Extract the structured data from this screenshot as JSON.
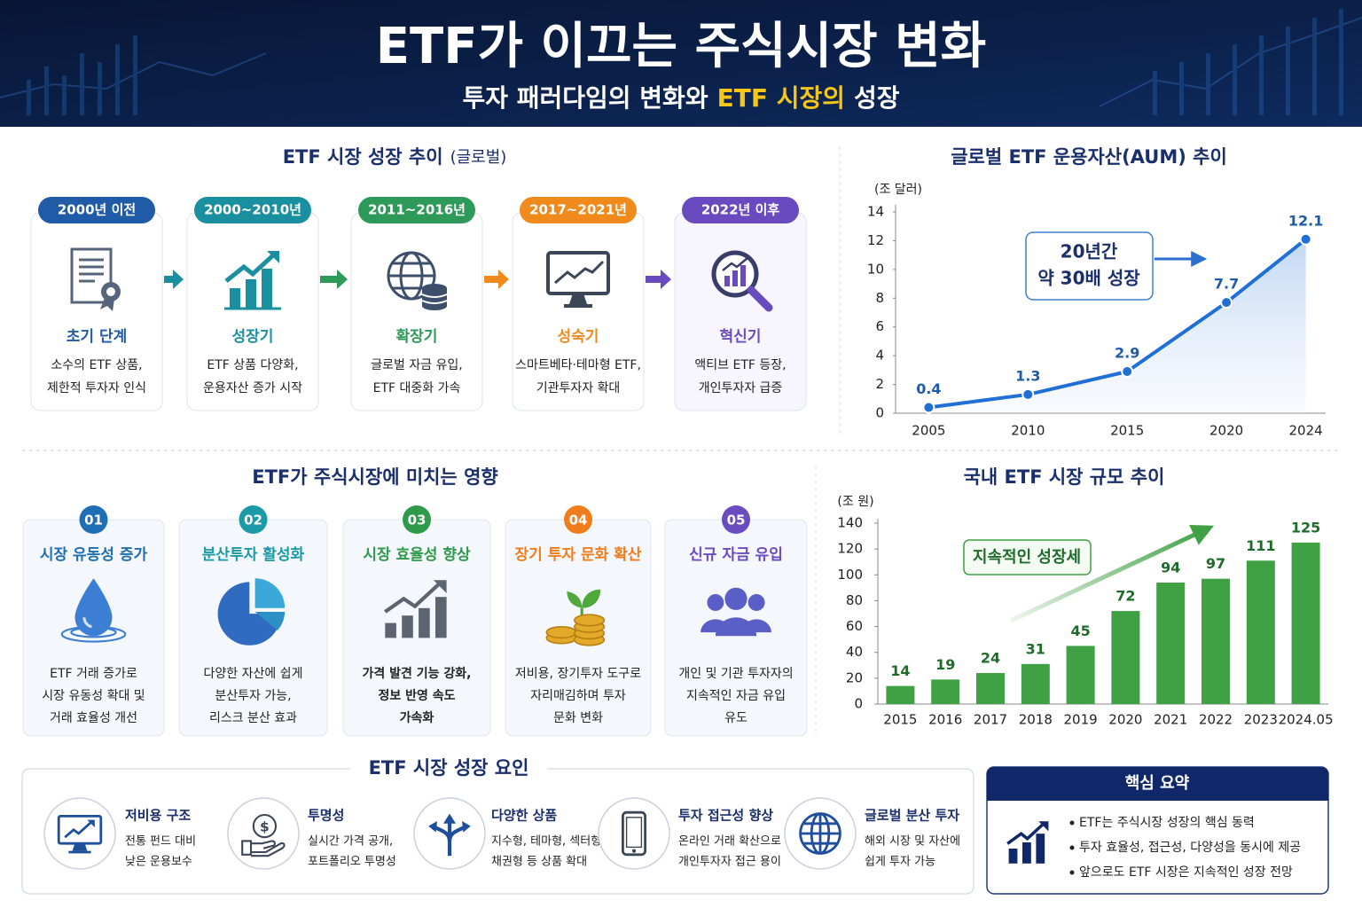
{
  "header": {
    "title": "ETF가 이끄는 주식시장 변화",
    "subtitle": [
      "투자 패러다임의 변화와",
      "ETF 시장의",
      "성장"
    ]
  },
  "timeline": {
    "title": "ETF 시장 성장 추이",
    "title_note": "(글로벌)",
    "stages": [
      {
        "period": "2000년 이전",
        "phase": "초기 단계",
        "description": [
          "소수의 ETF 상품,",
          "제한적 투자자 인식"
        ],
        "color": "#1f5ba6"
      },
      {
        "period": "2000~2010년",
        "phase": "성장기",
        "description": [
          "ETF 상품 다양화,",
          "운용자산 증가 시작"
        ],
        "color": "#1a8fa0"
      },
      {
        "period": "2011~2016년",
        "phase": "확장기",
        "description": [
          "글로벌 자금 유입,",
          "ETF 대중화 가속"
        ],
        "color": "#2e9a5a"
      },
      {
        "period": "2017~2021년",
        "phase": "성숙기",
        "description": [
          "스마트베타·테마형 ETF,",
          "기관투자자 확대"
        ],
        "color": "#f08a1c"
      },
      {
        "period": "2022년 이후",
        "phase": "혁신기",
        "description": [
          "액티브 ETF 등장,",
          "개인투자자 급증"
        ],
        "color": "#6a4bbf"
      }
    ]
  },
  "chart_data": [
    {
      "type": "line",
      "title": "글로벌 ETF 운용자산(AUM) 추이",
      "unit_label": "(조 달러)",
      "x": [
        2005,
        2010,
        2015,
        2020,
        2024
      ],
      "values": [
        0.4,
        1.3,
        2.9,
        7.7,
        12.1
      ],
      "color": "#1f6fd6",
      "xlim": [
        2004,
        2025
      ],
      "ylim": [
        0,
        14
      ],
      "xticks": [
        2005,
        2010,
        2015,
        2020,
        2024
      ],
      "yticks": [
        0,
        2,
        4,
        6,
        8,
        10,
        12,
        14
      ],
      "annotation": [
        "20년간",
        "약 30배 성장"
      ]
    },
    {
      "type": "bar",
      "title": "국내 ETF 시장 규모 추이",
      "unit_label": "(조 원)",
      "categories": [
        "2015",
        "2016",
        "2017",
        "2018",
        "2019",
        "2020",
        "2021",
        "2022",
        "2023",
        "2024.05"
      ],
      "values": [
        14,
        19,
        24,
        31,
        45,
        72,
        94,
        97,
        111,
        125
      ],
      "color": "#3fa144",
      "ylim": [
        0,
        140
      ],
      "yticks": [
        0,
        20,
        40,
        60,
        80,
        100,
        120,
        140
      ],
      "annotation": "지속적인 성장세"
    }
  ],
  "impact": {
    "title": "ETF가 주식시장에 미치는 영향",
    "items": [
      {
        "number": "01",
        "title": "시장 유동성 증가",
        "description": [
          "ETF 거래 증가로",
          "시장 유동성 확대 및",
          "거래 효율성 개선"
        ],
        "color": "#1f6fb5"
      },
      {
        "number": "02",
        "title": "분산투자 활성화",
        "description": [
          "다양한 자산에 쉽게",
          "분산투자 가능,",
          "리스크 분산 효과"
        ],
        "color": "#1b9aa8"
      },
      {
        "number": "03",
        "title": "시장 효율성 향상",
        "description": [
          "가격 발견 기능 강화,",
          "정보 반영 속도",
          "가속화"
        ],
        "color": "#2e9a4a"
      },
      {
        "number": "04",
        "title": "장기 투자 문화 확산",
        "description": [
          "저비용, 장기투자 도구로",
          "자리매김하며 투자",
          "문화 변화"
        ],
        "color": "#f07c1c"
      },
      {
        "number": "05",
        "title": "신규 자금 유입",
        "description": [
          "개인 및 기관 투자자의",
          "지속적인 자금 유입",
          "유도"
        ],
        "color": "#6a4bc0"
      }
    ]
  },
  "factors": {
    "title": "ETF 시장 성장 요인",
    "items": [
      {
        "title": "저비용 구조",
        "description": [
          "전통 펀드 대비",
          "낮은 운용보수"
        ]
      },
      {
        "title": "투명성",
        "description": [
          "실시간 가격 공개,",
          "포트폴리오 투명성"
        ]
      },
      {
        "title": "다양한 상품",
        "description": [
          "지수형, 테마형, 섹터형,",
          "채권형 등 상품 확대"
        ]
      },
      {
        "title": "투자 접근성 향상",
        "description": [
          "온라인 거래 확산으로",
          "개인투자자 접근 용이"
        ]
      },
      {
        "title": "글로벌 분산 투자",
        "description": [
          "해외 시장 및 자산에",
          "쉽게 투자 가능"
        ]
      }
    ]
  },
  "summary": {
    "title": "핵심 요약",
    "items": [
      "ETF는 주식시장 성장의 핵심 동력",
      "투자 효율성, 접근성, 다양성을 동시에 제공",
      "앞으로도 ETF 시장은 지속적인 성장 전망"
    ]
  }
}
